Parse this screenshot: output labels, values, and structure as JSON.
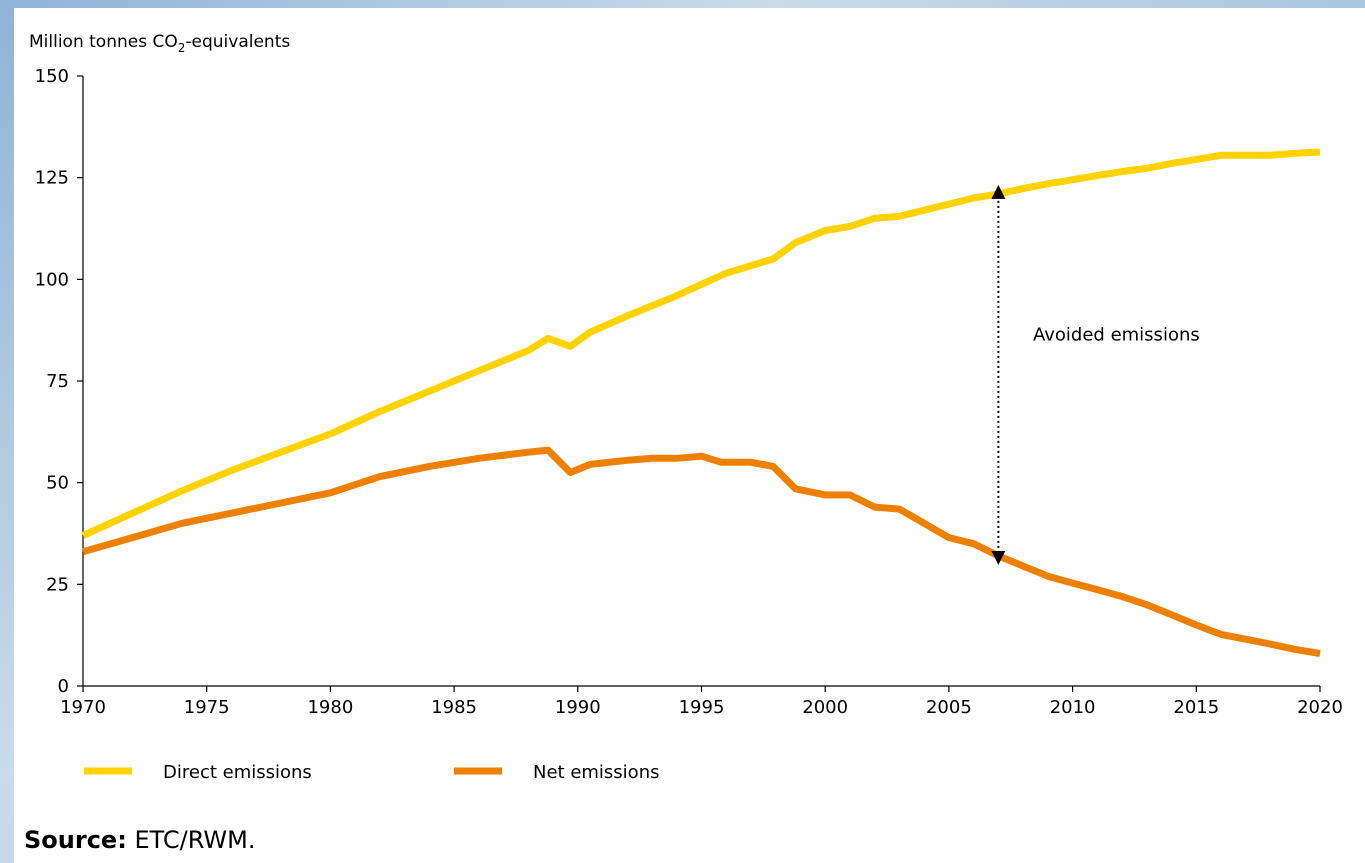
{
  "chart_data": {
    "type": "line",
    "ylabel_prefix": "Million tonnes CO",
    "ylabel_sub": "2",
    "ylabel_suffix": "-equivalents",
    "xlim": [
      1970,
      2020
    ],
    "ylim": [
      0,
      150
    ],
    "x_ticks": [
      1970,
      1975,
      1980,
      1985,
      1990,
      1995,
      2000,
      2005,
      2010,
      2015,
      2020
    ],
    "y_ticks": [
      0,
      25,
      50,
      75,
      100,
      125,
      150
    ],
    "grid": false,
    "legend_position": "bottom",
    "series": [
      {
        "name": "Direct emissions",
        "color": "#ffd200",
        "x": [
          1970,
          1972,
          1974,
          1976,
          1978,
          1980,
          1982,
          1984,
          1986,
          1988,
          1988.8,
          1989.7,
          1990.5,
          1992,
          1994,
          1996,
          1997.9,
          1998.8,
          2000,
          2001,
          2002,
          2003,
          2004,
          2005,
          2006,
          2007,
          2008,
          2009,
          2010,
          2011,
          2012,
          2013,
          2014,
          2015,
          2016,
          2017,
          2018,
          2019,
          2020
        ],
        "y": [
          37,
          42.5,
          48,
          53,
          57.5,
          62,
          67.5,
          72.5,
          77.5,
          82.5,
          85.5,
          83.5,
          87,
          91,
          96,
          101.5,
          105,
          109,
          112,
          113,
          115,
          115.5,
          117,
          118.5,
          120,
          121,
          122.3,
          123.5,
          124.5,
          125.5,
          126.5,
          127.3,
          128.5,
          129.5,
          130.5,
          130.5,
          130.5,
          131,
          131.3
        ]
      },
      {
        "name": "Net emissions",
        "color": "#ee8000",
        "x": [
          1970,
          1972,
          1974,
          1976,
          1978,
          1980,
          1982,
          1984,
          1986,
          1988,
          1988.8,
          1989.7,
          1990.5,
          1992,
          1993,
          1994,
          1995,
          1995.8,
          1997,
          1997.9,
          1998.8,
          2000,
          2001,
          2002,
          2003,
          2004,
          2005,
          2006,
          2007,
          2008,
          2009,
          2010,
          2011,
          2012,
          2013,
          2014,
          2015,
          2016,
          2017,
          2018,
          2019,
          2020
        ],
        "y": [
          33,
          36.5,
          40,
          42.5,
          45,
          47.5,
          51.5,
          54,
          56,
          57.5,
          58,
          52.5,
          54.5,
          55.5,
          56,
          56,
          56.5,
          55,
          55,
          54,
          48.5,
          47,
          47,
          44,
          43.5,
          40,
          36.5,
          35,
          32,
          29.5,
          27,
          25.3,
          23.7,
          22,
          20,
          17.5,
          15,
          12.7,
          11.5,
          10.3,
          9,
          8
        ]
      }
    ],
    "annotations": [
      {
        "text": "Avoided emissions",
        "x": 2007,
        "y_from": 31.5,
        "y_to": 121.5
      }
    ]
  },
  "source": {
    "label": "Source:",
    "text": "ETC/RWM."
  }
}
